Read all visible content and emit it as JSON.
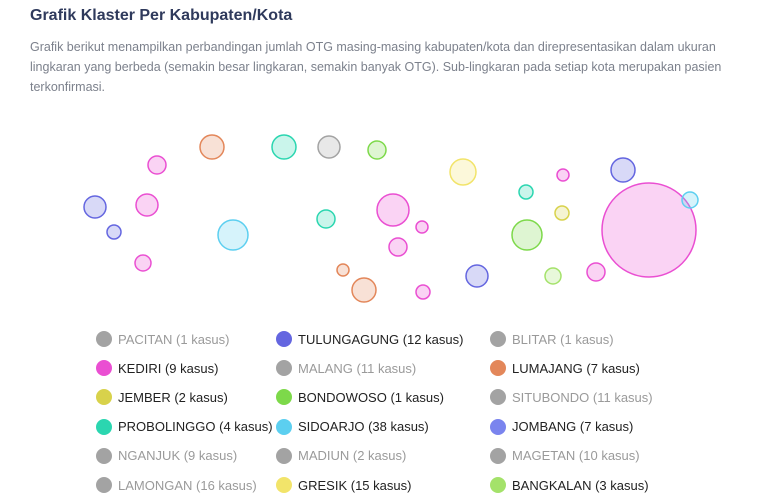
{
  "header": {
    "title": "Grafik Klaster Per Kabupaten/Kota",
    "description": "Grafik berikut menampilkan perbandingan jumlah OTG masing-masing kabupaten/kota dan direpresentasikan dalam ukuran lingkaran yang berbeda (semakin besar lingkaran, semakin banyak OTG). Sub-lingkaran pada setiap kota merupakan pasien terkonfirmasi."
  },
  "legend": {
    "items": [
      {
        "label": "PACITAN (1 kasus)",
        "color": "#a3a3a3",
        "active": false
      },
      {
        "label": "TULUNGAGUNG (12 kasus)",
        "color": "#6466e0",
        "active": true
      },
      {
        "label": "BLITAR (1 kasus)",
        "color": "#a3a3a3",
        "active": false
      },
      {
        "label": "KEDIRI (9 kasus)",
        "color": "#ea4fd2",
        "active": true
      },
      {
        "label": "MALANG (11 kasus)",
        "color": "#a3a3a3",
        "active": false
      },
      {
        "label": "LUMAJANG (7 kasus)",
        "color": "#e3875a",
        "active": true
      },
      {
        "label": "JEMBER (2 kasus)",
        "color": "#d8d24b",
        "active": true
      },
      {
        "label": "BONDOWOSO (1 kasus)",
        "color": "#7dd94a",
        "active": true
      },
      {
        "label": "SITUBONDO (11 kasus)",
        "color": "#a3a3a3",
        "active": false
      },
      {
        "label": "PROBOLINGGO (4 kasus)",
        "color": "#2bd6b0",
        "active": true
      },
      {
        "label": "SIDOARJO (38 kasus)",
        "color": "#5ccff0",
        "active": true
      },
      {
        "label": "JOMBANG (7 kasus)",
        "color": "#7a84ee",
        "active": true
      },
      {
        "label": "NGANJUK (9 kasus)",
        "color": "#a3a3a3",
        "active": false
      },
      {
        "label": "MADIUN (2 kasus)",
        "color": "#a3a3a3",
        "active": false
      },
      {
        "label": "MAGETAN (10 kasus)",
        "color": "#a3a3a3",
        "active": false
      },
      {
        "label": "LAMONGAN (16 kasus)",
        "color": "#a3a3a3",
        "active": false
      },
      {
        "label": "GRESIK (15 kasus)",
        "color": "#f2e46a",
        "active": true
      },
      {
        "label": "BANGKALAN (3 kasus)",
        "color": "#a4e26a",
        "active": true
      }
    ]
  }
}
